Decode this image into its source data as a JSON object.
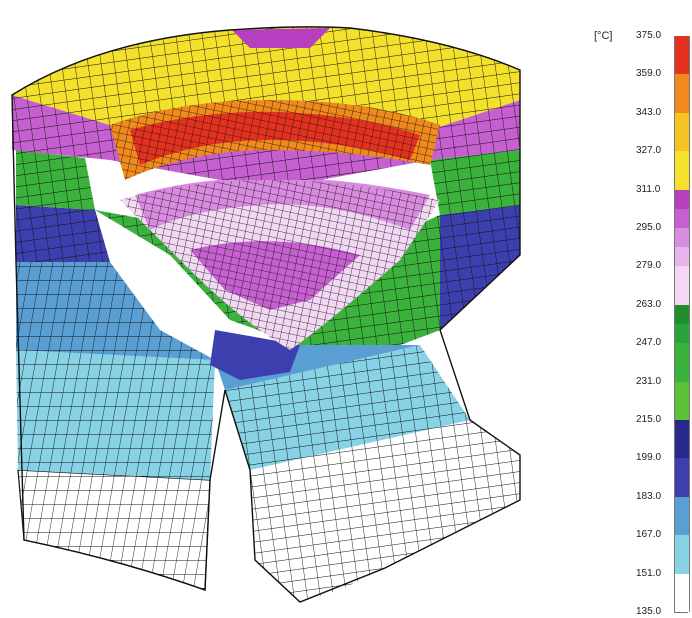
{
  "legend": {
    "unit": "[°C]",
    "ticks": [
      "375.0",
      "359.0",
      "343.0",
      "327.0",
      "311.0",
      "295.0",
      "279.0",
      "263.0",
      "247.0",
      "231.0",
      "215.0",
      "199.0",
      "183.0",
      "167.0",
      "151.0",
      "135.0"
    ],
    "bands": [
      {
        "from": 359.0,
        "to": 375.0,
        "color": "#e4301f"
      },
      {
        "from": 343.0,
        "to": 359.0,
        "color": "#f08a1c"
      },
      {
        "from": 327.0,
        "to": 343.0,
        "color": "#f6c421"
      },
      {
        "from": 311.0,
        "to": 327.0,
        "color": "#f4e12c"
      },
      {
        "from": 303.0,
        "to": 311.0,
        "color": "#b53fbf"
      },
      {
        "from": 295.0,
        "to": 303.0,
        "color": "#c65fd0"
      },
      {
        "from": 287.0,
        "to": 295.0,
        "color": "#d98be0"
      },
      {
        "from": 279.0,
        "to": 287.0,
        "color": "#e7b4ec"
      },
      {
        "from": 263.0,
        "to": 279.0,
        "color": "#f3d8f4"
      },
      {
        "from": 255.0,
        "to": 263.0,
        "color": "#1f8f2e"
      },
      {
        "from": 247.0,
        "to": 255.0,
        "color": "#2aa23a"
      },
      {
        "from": 231.0,
        "to": 247.0,
        "color": "#3ab23c"
      },
      {
        "from": 215.0,
        "to": 231.0,
        "color": "#5cc23a"
      },
      {
        "from": 199.0,
        "to": 215.0,
        "color": "#28288c"
      },
      {
        "from": 183.0,
        "to": 199.0,
        "color": "#3d3fae"
      },
      {
        "from": 167.0,
        "to": 183.0,
        "color": "#5a9fd4"
      },
      {
        "from": 151.0,
        "to": 167.0,
        "color": "#88d2e6"
      },
      {
        "from": 135.0,
        "to": 151.0,
        "color": "#ffffff"
      }
    ]
  },
  "regions": [
    {
      "name": "crown-top",
      "color": "#f4e12c"
    },
    {
      "name": "crown-hot-ring",
      "color": "#f08a1c"
    },
    {
      "name": "crown-hottest",
      "color": "#e4301f"
    },
    {
      "name": "bowl",
      "color": "#d98be0"
    },
    {
      "name": "bowl-center",
      "color": "#b53fbf"
    },
    {
      "name": "ring-land-purple",
      "color": "#c65fd0"
    },
    {
      "name": "ring-groove-green",
      "color": "#3ab23c"
    },
    {
      "name": "ring-groove-blue",
      "color": "#3d3fae"
    },
    {
      "name": "skirt-upper",
      "color": "#5a9fd4"
    },
    {
      "name": "skirt-middle",
      "color": "#88d2e6"
    },
    {
      "name": "skirt-lower",
      "color": "#ffffff"
    }
  ]
}
